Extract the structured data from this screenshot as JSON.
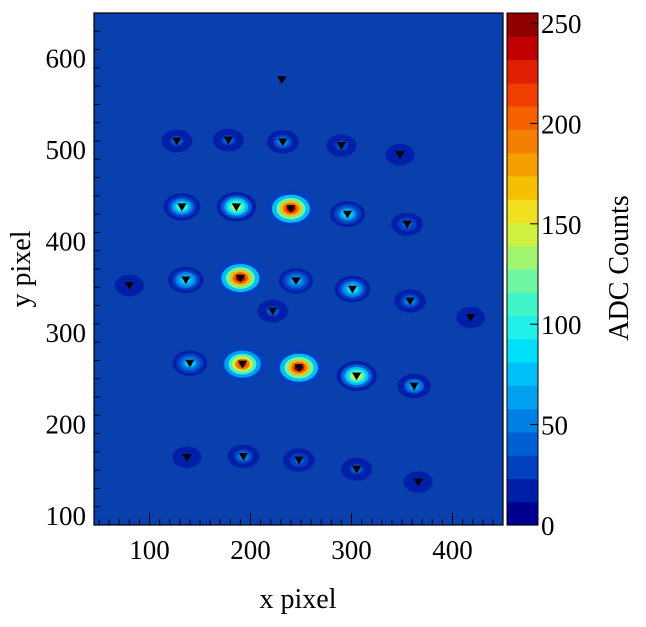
{
  "chart_data": {
    "type": "heatmap",
    "title": "",
    "xlabel": "x pixel",
    "ylabel": "y pixel",
    "zlabel": "ADC Counts",
    "xlim": [
      45,
      450
    ],
    "ylim": [
      90,
      650
    ],
    "zlim": [
      0,
      255
    ],
    "x_ticks": [
      100,
      200,
      300,
      400
    ],
    "y_ticks": [
      100,
      200,
      300,
      400,
      500,
      600
    ],
    "z_ticks": [
      0,
      50,
      100,
      150,
      200,
      250
    ],
    "grid": false,
    "background_color": "#0a3fae",
    "colormap": [
      "#00008f",
      "#001fa8",
      "#0040c0",
      "#005fd4",
      "#0080e4",
      "#009fef",
      "#00bff8",
      "#00dffa",
      "#20f0e8",
      "#40f5c8",
      "#70f5a0",
      "#a0f570",
      "#d0f040",
      "#f0e020",
      "#f5c000",
      "#f5a000",
      "#f58000",
      "#f56000",
      "#f04000",
      "#e02000",
      "#c00000",
      "#900000"
    ],
    "spots": [
      {
        "x": 231,
        "y": 577,
        "peak": 0
      },
      {
        "x": 127,
        "y": 510,
        "peak": 45
      },
      {
        "x": 178,
        "y": 511,
        "peak": 45
      },
      {
        "x": 232,
        "y": 509,
        "peak": 55
      },
      {
        "x": 290,
        "y": 505,
        "peak": 35
      },
      {
        "x": 348,
        "y": 495,
        "peak": 25
      },
      {
        "x": 132,
        "y": 438,
        "peak": 110
      },
      {
        "x": 186,
        "y": 438,
        "peak": 140
      },
      {
        "x": 240,
        "y": 436,
        "peak": 240
      },
      {
        "x": 296,
        "y": 430,
        "peak": 90
      },
      {
        "x": 355,
        "y": 419,
        "peak": 50
      },
      {
        "x": 80,
        "y": 352,
        "peak": 25
      },
      {
        "x": 136,
        "y": 358,
        "peak": 95
      },
      {
        "x": 190,
        "y": 360,
        "peak": 240
      },
      {
        "x": 245,
        "y": 357,
        "peak": 80
      },
      {
        "x": 301,
        "y": 348,
        "peak": 100
      },
      {
        "x": 358,
        "y": 335,
        "peak": 55
      },
      {
        "x": 222,
        "y": 324,
        "peak": 45
      },
      {
        "x": 418,
        "y": 317,
        "peak": 20
      },
      {
        "x": 140,
        "y": 267,
        "peak": 85
      },
      {
        "x": 192,
        "y": 266,
        "peak": 220
      },
      {
        "x": 248,
        "y": 262,
        "peak": 245
      },
      {
        "x": 305,
        "y": 253,
        "peak": 150
      },
      {
        "x": 362,
        "y": 242,
        "peak": 70
      },
      {
        "x": 137,
        "y": 164,
        "peak": 25
      },
      {
        "x": 193,
        "y": 165,
        "peak": 55
      },
      {
        "x": 248,
        "y": 161,
        "peak": 50
      },
      {
        "x": 305,
        "y": 151,
        "peak": 45
      },
      {
        "x": 366,
        "y": 137,
        "peak": 25
      }
    ]
  }
}
